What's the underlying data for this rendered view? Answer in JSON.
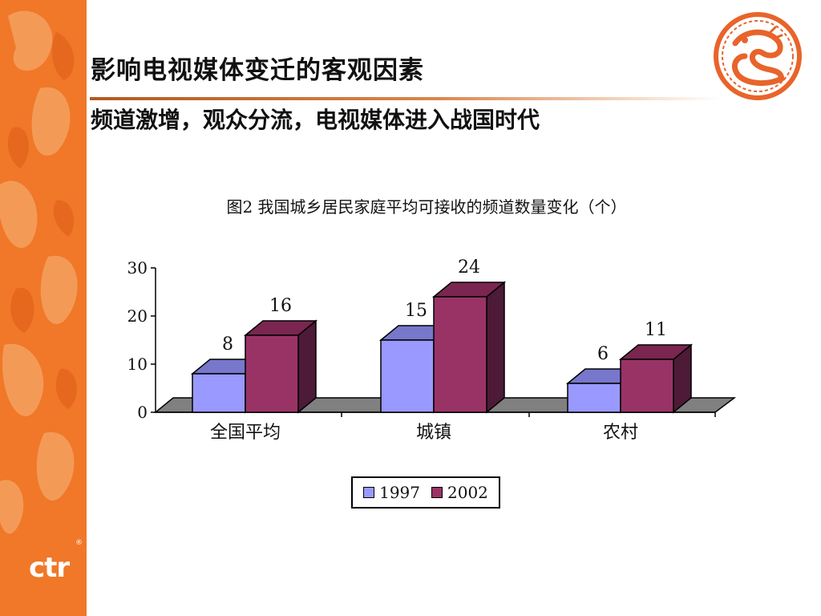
{
  "slide": {
    "title": "影响电视媒体变迁的客观因素",
    "subtitle": "频道激增，观众分流，电视媒体进入战国时代",
    "logo_text": "ctr",
    "logo_mark": "®"
  },
  "colors": {
    "band": "#f07828",
    "seal": "#e8642a",
    "series_1997": "#9999ff",
    "series_2002": "#993366",
    "floor": "#808080"
  },
  "chart_data": {
    "type": "bar",
    "title": "图2  我国城乡居民家庭平均可接收的频道数量变化（个）",
    "categories": [
      "全国平均",
      "城镇",
      "农村"
    ],
    "series": [
      {
        "name": "1997",
        "values": [
          8,
          15,
          6
        ]
      },
      {
        "name": "2002",
        "values": [
          16,
          24,
          11
        ]
      }
    ],
    "yticks": [
      0,
      10,
      20,
      30
    ],
    "ylim": [
      0,
      30
    ],
    "legend": "bottom",
    "grid": false
  }
}
